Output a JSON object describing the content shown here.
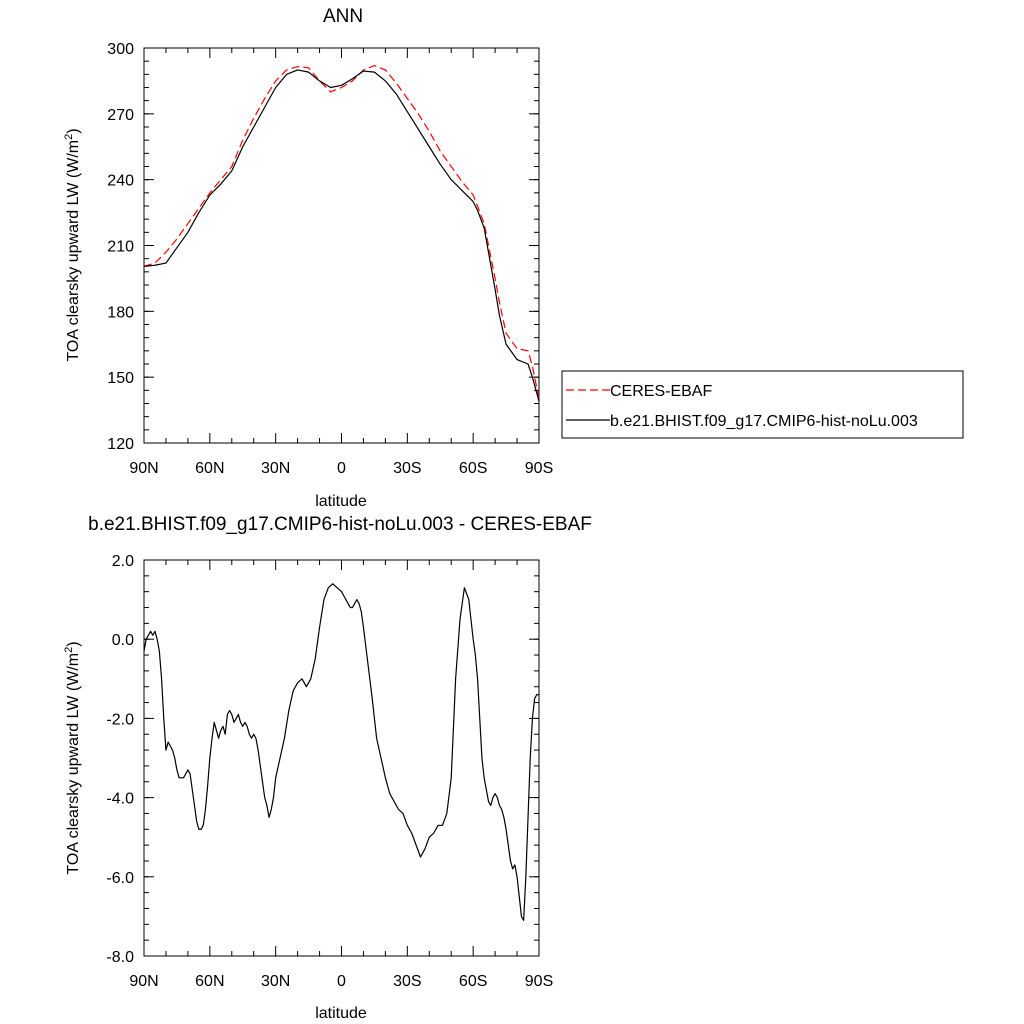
{
  "chart_data": [
    {
      "type": "line",
      "title": "ANN",
      "xlabel": "latitude",
      "ylabel": "TOA clearsky upward LW (W/m2)",
      "ylabel_parts": {
        "base": "TOA clearsky upward LW (W/m",
        "sup": "2",
        "close": ")"
      },
      "xlim": [
        90,
        -90
      ],
      "ylim": [
        120,
        300
      ],
      "xtick_values": [
        90,
        60,
        30,
        0,
        -30,
        -60,
        -90
      ],
      "xtick_labels": [
        "90N",
        "60N",
        "30N",
        "0",
        "30S",
        "60S",
        "90S"
      ],
      "ytick_values": [
        120,
        150,
        180,
        210,
        240,
        270,
        300
      ],
      "ytick_labels": [
        "120",
        "150",
        "180",
        "210",
        "240",
        "270",
        "300"
      ],
      "legend_position": "right",
      "series": [
        {
          "name": "CERES-EBAF",
          "color": "#ff0000",
          "style": "dashed",
          "x": [
            90,
            85,
            80,
            75,
            70,
            65,
            60,
            55,
            50,
            45,
            40,
            35,
            30,
            25,
            20,
            15,
            10,
            5,
            0,
            -5,
            -10,
            -15,
            -20,
            -25,
            -30,
            -35,
            -40,
            -45,
            -50,
            -55,
            -60,
            -62,
            -65,
            -70,
            -72,
            -75,
            -80,
            -85,
            -87,
            -90
          ],
          "y": [
            200.5,
            202,
            207,
            213,
            220,
            227,
            234,
            240,
            246,
            258,
            268,
            277,
            285,
            290,
            291.5,
            291,
            285,
            280,
            282,
            285,
            290,
            292,
            290,
            284,
            277,
            270,
            262,
            253,
            246,
            239,
            233,
            228,
            220,
            195,
            184,
            170,
            163,
            162,
            155,
            140
          ]
        },
        {
          "name": "b.e21.BHIST.f09_g17.CMIP6-hist-noLu.003",
          "color": "#000000",
          "style": "solid",
          "x": [
            90,
            85,
            80,
            75,
            70,
            65,
            60,
            55,
            50,
            45,
            40,
            35,
            30,
            25,
            20,
            15,
            10,
            5,
            0,
            -5,
            -10,
            -15,
            -20,
            -25,
            -30,
            -35,
            -40,
            -45,
            -50,
            -55,
            -60,
            -62,
            -65,
            -70,
            -72,
            -75,
            -80,
            -85,
            -87,
            -90
          ],
          "y": [
            200.5,
            201,
            202,
            209,
            216,
            225,
            233,
            238,
            244,
            255,
            264,
            273,
            282,
            288,
            290,
            289,
            285,
            282,
            283,
            286,
            289.5,
            289,
            285,
            279,
            271,
            263,
            255,
            247,
            240,
            235,
            230,
            226,
            218,
            190,
            178,
            165,
            158,
            156,
            150,
            139
          ]
        }
      ]
    },
    {
      "type": "line",
      "title": "b.e21.BHIST.f09_g17.CMIP6-hist-noLu.003 - CERES-EBAF",
      "xlabel": "latitude",
      "ylabel": "TOA clearsky upward LW (W/m2)",
      "ylabel_parts": {
        "base": "TOA clearsky upward LW (W/m",
        "sup": "2",
        "close": ")"
      },
      "xlim": [
        90,
        -90
      ],
      "ylim": [
        -8,
        2
      ],
      "xtick_values": [
        90,
        60,
        30,
        0,
        -30,
        -60,
        -90
      ],
      "xtick_labels": [
        "90N",
        "60N",
        "30N",
        "0",
        "30S",
        "60S",
        "90S"
      ],
      "ytick_values": [
        -8,
        -6,
        -4,
        -2,
        0,
        2
      ],
      "ytick_labels": [
        "-8.0",
        "-6.0",
        "-4.0",
        "-2.0",
        "0.0",
        "2.0"
      ],
      "series": [
        {
          "color": "#000000",
          "style": "solid",
          "x": [
            90,
            89,
            87,
            86,
            85,
            84,
            83,
            82,
            81,
            80,
            79,
            78,
            77,
            76,
            75,
            74,
            72,
            70,
            69,
            68,
            67,
            66,
            65,
            64,
            63,
            62,
            61,
            60,
            59,
            58,
            57,
            56,
            55,
            54,
            53,
            52,
            51,
            50,
            49,
            48,
            47,
            46,
            45,
            44,
            43,
            42,
            41,
            40,
            39,
            38,
            37,
            36,
            35,
            34,
            33,
            32,
            31,
            30,
            28,
            26,
            24,
            22,
            20,
            18,
            16,
            14,
            12,
            10,
            8,
            6,
            4,
            2,
            0,
            -1,
            -2,
            -3,
            -4,
            -5,
            -6,
            -7,
            -8,
            -9,
            -10,
            -12,
            -14,
            -16,
            -18,
            -20,
            -22,
            -24,
            -26,
            -28,
            -30,
            -32,
            -34,
            -36,
            -38,
            -40,
            -42,
            -44,
            -46,
            -48,
            -50,
            -52,
            -54,
            -56,
            -58,
            -59,
            -60,
            -61,
            -62,
            -63,
            -64,
            -65,
            -66,
            -67,
            -68,
            -69,
            -70,
            -71,
            -72,
            -73,
            -74,
            -75,
            -76,
            -77,
            -78,
            -79,
            -80,
            -81,
            -82,
            -83,
            -84,
            -85,
            -86,
            -87,
            -88,
            -89,
            -90
          ],
          "y": [
            -0.3,
            0.0,
            0.2,
            0.1,
            0.2,
            0.0,
            -0.3,
            -1.0,
            -2.0,
            -2.8,
            -2.6,
            -2.7,
            -2.8,
            -3.0,
            -3.3,
            -3.5,
            -3.5,
            -3.3,
            -3.4,
            -3.8,
            -4.2,
            -4.6,
            -4.8,
            -4.8,
            -4.7,
            -4.3,
            -3.7,
            -3.0,
            -2.5,
            -2.1,
            -2.3,
            -2.5,
            -2.3,
            -2.2,
            -2.4,
            -1.9,
            -1.8,
            -1.9,
            -2.1,
            -2.0,
            -1.9,
            -2.1,
            -2.2,
            -2.1,
            -2.2,
            -2.4,
            -2.5,
            -2.4,
            -2.5,
            -2.8,
            -3.2,
            -3.6,
            -4.0,
            -4.2,
            -4.5,
            -4.3,
            -4.0,
            -3.5,
            -3.0,
            -2.5,
            -1.8,
            -1.3,
            -1.1,
            -1.0,
            -1.2,
            -1.0,
            -0.5,
            0.3,
            1.0,
            1.3,
            1.4,
            1.3,
            1.2,
            1.1,
            1.0,
            0.9,
            0.8,
            0.8,
            0.9,
            1.0,
            0.9,
            0.7,
            0.3,
            -0.6,
            -1.5,
            -2.5,
            -3.0,
            -3.5,
            -3.9,
            -4.1,
            -4.3,
            -4.4,
            -4.7,
            -4.9,
            -5.2,
            -5.5,
            -5.3,
            -5.0,
            -4.9,
            -4.7,
            -4.7,
            -4.4,
            -3.5,
            -1.0,
            0.5,
            1.3,
            1.0,
            0.5,
            0.0,
            -0.4,
            -1.0,
            -2.0,
            -3.0,
            -3.5,
            -3.8,
            -4.1,
            -4.2,
            -4.0,
            -3.9,
            -4.0,
            -4.2,
            -4.3,
            -4.5,
            -4.8,
            -5.2,
            -5.6,
            -5.8,
            -5.7,
            -6.0,
            -6.5,
            -7.0,
            -7.1,
            -6.0,
            -4.5,
            -3.0,
            -2.0,
            -1.5,
            -1.4,
            -1.4
          ]
        }
      ]
    }
  ]
}
